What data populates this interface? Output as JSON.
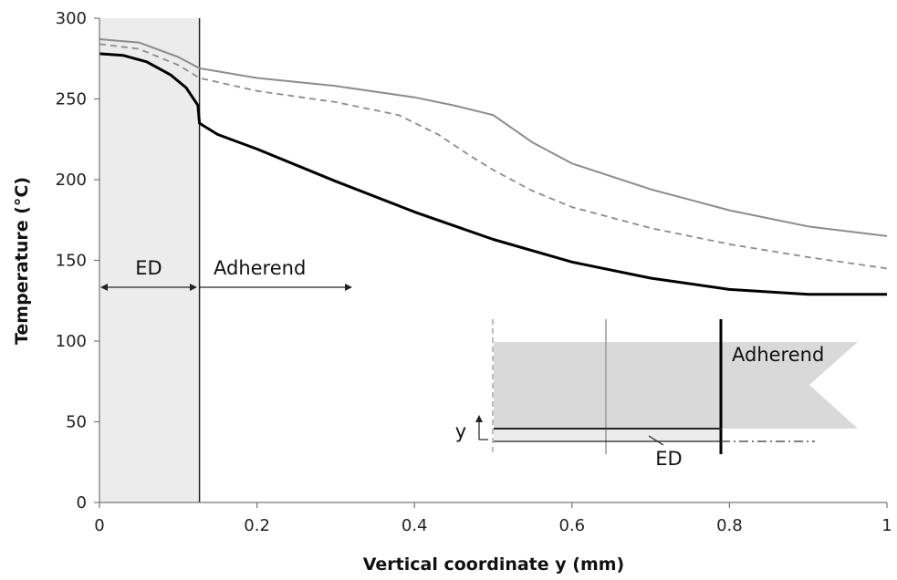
{
  "chart_data": {
    "type": "line",
    "xlabel": "Vertical coordinate y (mm)",
    "ylabel": "Temperature (°C)",
    "xlim": [
      0,
      1
    ],
    "ylim": [
      0,
      300
    ],
    "xticks": [
      "0",
      "0.2",
      "0.4",
      "0.6",
      "0.8",
      "1"
    ],
    "yticks": [
      "0",
      "50",
      "100",
      "150",
      "200",
      "250",
      "300"
    ],
    "grid": false,
    "ed_region": [
      0,
      0.127
    ],
    "series": [
      {
        "style": "solid-gray",
        "color": "#8c8c8c",
        "x": [
          0,
          0.05,
          0.1,
          0.127,
          0.2,
          0.3,
          0.4,
          0.45,
          0.5,
          0.55,
          0.6,
          0.7,
          0.8,
          0.9,
          1.0
        ],
        "y": [
          287,
          285,
          276,
          269,
          263,
          258,
          251,
          246,
          240,
          223,
          210,
          194,
          181,
          171,
          165
        ]
      },
      {
        "style": "dashed-gray",
        "color": "#8c8c8c",
        "x": [
          0,
          0.05,
          0.1,
          0.127,
          0.2,
          0.3,
          0.38,
          0.43,
          0.47,
          0.5,
          0.55,
          0.6,
          0.7,
          0.8,
          0.9,
          1.0
        ],
        "y": [
          284,
          281,
          271,
          263,
          255,
          248,
          240,
          228,
          215,
          206,
          193,
          183,
          170,
          160,
          152,
          145
        ]
      },
      {
        "style": "solid-black",
        "color": "#000000",
        "x": [
          0,
          0.03,
          0.06,
          0.09,
          0.11,
          0.125,
          0.127,
          0.15,
          0.2,
          0.3,
          0.4,
          0.5,
          0.6,
          0.7,
          0.8,
          0.9,
          1.0
        ],
        "y": [
          278,
          277,
          273,
          265,
          257,
          246,
          235,
          228,
          219,
          199,
          180,
          163,
          149,
          139,
          132,
          129,
          129
        ]
      }
    ],
    "annotations": {
      "ed_label": "ED",
      "adherend_label": "Adherend",
      "inset_adherend_label": "Adherend",
      "inset_ed_label": "ED",
      "inset_y_label": "y"
    }
  }
}
